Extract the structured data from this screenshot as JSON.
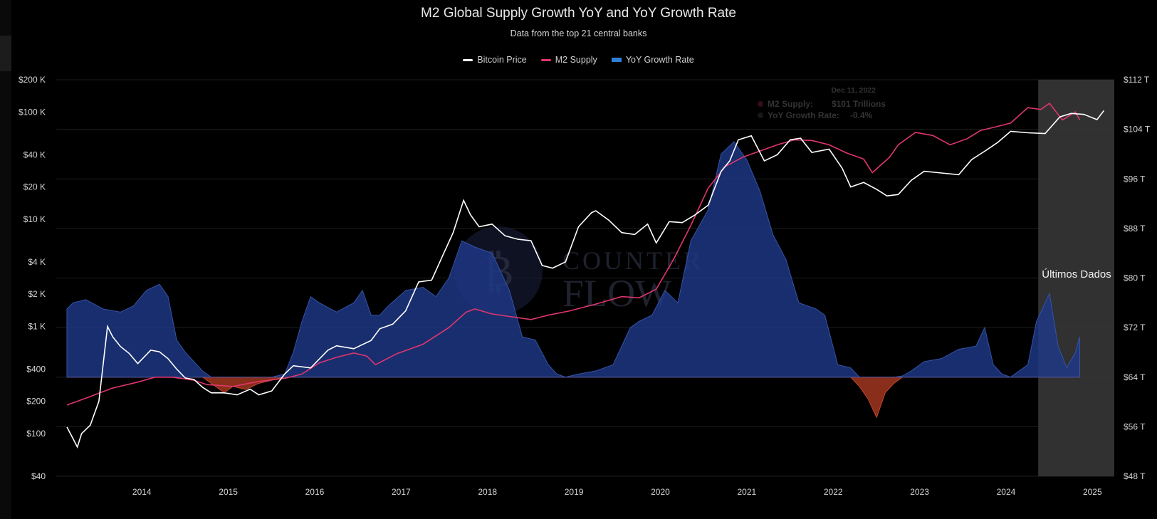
{
  "header": {
    "title": "M2 Global Supply Growth YoY and YoY Growth Rate",
    "subtitle": "Data from the top 21 central banks"
  },
  "legend": [
    {
      "label": "Bitcoin Price",
      "color": "#ffffff",
      "kind": "line"
    },
    {
      "label": "M2 Supply",
      "color": "#e0356e",
      "kind": "line"
    },
    {
      "label": "YoY Growth Rate",
      "color": "#2f7fd8",
      "kind": "bar"
    }
  ],
  "tooltip": {
    "date": "Dec 11, 2022",
    "m2_label": "M2 Supply:",
    "m2_value": "$101 Trillions",
    "yoy_label": "YoY Growth Rate:",
    "yoy_value": "-0.4%"
  },
  "annotation": {
    "label": "Últimos Dados",
    "start": 2024.62,
    "end": 2025.5
  },
  "watermark": {
    "line1": "COUNTER",
    "line2": "FLOW"
  },
  "colors": {
    "background": "#000000",
    "btc": "#ffffff",
    "m2": "#e0356e",
    "yoy_positive": "#1f3a8a",
    "yoy_negative": "#a0361f",
    "highlight": "#3a3a3a"
  },
  "chart_data": {
    "type": "line",
    "x_range": [
      2013.38,
      2025.5
    ],
    "left_axis": {
      "scale": "log",
      "ticks": [
        40,
        100,
        200,
        400,
        1000,
        2000,
        4000,
        10000,
        20000,
        40000,
        100000,
        200000
      ],
      "tick_labels": [
        "$40",
        "$100",
        "$200",
        "$400",
        "$1 K",
        "$2 K",
        "$4 K",
        "$10 K",
        "$20 K",
        "$40 K",
        "$100 K",
        "$200 K"
      ]
    },
    "right_axis": {
      "scale": "linear",
      "range": [
        48,
        112
      ],
      "ticks": [
        48,
        56,
        64,
        72,
        80,
        88,
        96,
        104,
        112
      ],
      "tick_labels": [
        "$48 T",
        "$56 T",
        "$64 T",
        "$72 T",
        "$80 T",
        "$88 T",
        "$96 T",
        "$104 T",
        "$112 T"
      ]
    },
    "x_ticks": [
      2014,
      2015,
      2016,
      2017,
      2018,
      2019,
      2020,
      2021,
      2022,
      2023,
      2024,
      2025
    ],
    "x_tick_labels": [
      "2014",
      "2015",
      "2016",
      "2017",
      "2018",
      "2019",
      "2020",
      "2021",
      "2022",
      "2023",
      "2024",
      "2025"
    ],
    "yoy_baseline": 64,
    "series": [
      {
        "name": "Bitcoin Price",
        "axis": "left",
        "color": "#ffffff",
        "x": [
          2013.38,
          2013.45,
          2013.5,
          2013.55,
          2013.65,
          2013.75,
          2013.85,
          2013.91,
          2014.0,
          2014.1,
          2014.2,
          2014.35,
          2014.45,
          2014.55,
          2014.65,
          2014.75,
          2014.85,
          2014.95,
          2015.05,
          2015.2,
          2015.35,
          2015.5,
          2015.6,
          2015.75,
          2015.9,
          2016.0,
          2016.2,
          2016.4,
          2016.5,
          2016.7,
          2016.9,
          2017.0,
          2017.15,
          2017.3,
          2017.45,
          2017.6,
          2017.75,
          2017.85,
          2017.97,
          2018.05,
          2018.15,
          2018.3,
          2018.45,
          2018.6,
          2018.75,
          2018.88,
          2019.0,
          2019.15,
          2019.3,
          2019.45,
          2019.5,
          2019.65,
          2019.8,
          2019.95,
          2020.1,
          2020.2,
          2020.35,
          2020.5,
          2020.65,
          2020.8,
          2020.95,
          2021.05,
          2021.15,
          2021.3,
          2021.45,
          2021.6,
          2021.75,
          2021.87,
          2022.0,
          2022.2,
          2022.35,
          2022.45,
          2022.6,
          2022.75,
          2022.87,
          2023.0,
          2023.15,
          2023.3,
          2023.5,
          2023.7,
          2023.85,
          2024.0,
          2024.15,
          2024.3,
          2024.5,
          2024.7,
          2024.87,
          2025.0,
          2025.15,
          2025.3,
          2025.38
        ],
        "values": [
          115,
          90,
          75,
          100,
          120,
          200,
          1000,
          800,
          650,
          560,
          450,
          600,
          580,
          500,
          400,
          330,
          320,
          270,
          240,
          240,
          230,
          260,
          230,
          250,
          360,
          430,
          410,
          600,
          660,
          620,
          740,
          950,
          1050,
          1400,
          2600,
          2700,
          5000,
          7500,
          15000,
          11000,
          8500,
          9000,
          7000,
          6500,
          6300,
          3700,
          3500,
          4000,
          8500,
          11500,
          12000,
          9800,
          7500,
          7200,
          9000,
          6000,
          9500,
          9300,
          11000,
          13500,
          28000,
          35000,
          55000,
          60000,
          35000,
          40000,
          55000,
          57000,
          42000,
          45000,
          30000,
          20000,
          22000,
          19000,
          16500,
          17000,
          23000,
          28000,
          27000,
          26000,
          36000,
          43000,
          52000,
          66000,
          64000,
          63000,
          90000,
          97000,
          95000,
          85000,
          103000
        ]
      },
      {
        "name": "M2 Supply",
        "axis": "right",
        "color": "#e0356e",
        "x": [
          2013.38,
          2013.6,
          2013.9,
          2014.2,
          2014.4,
          2014.6,
          2014.85,
          2015.0,
          2015.3,
          2015.6,
          2015.9,
          2016.1,
          2016.3,
          2016.5,
          2016.7,
          2016.85,
          2016.95,
          2017.2,
          2017.5,
          2017.8,
          2018.0,
          2018.1,
          2018.3,
          2018.5,
          2018.75,
          2018.95,
          2019.2,
          2019.5,
          2019.8,
          2020.0,
          2020.2,
          2020.4,
          2020.6,
          2020.8,
          2021.0,
          2021.2,
          2021.4,
          2021.6,
          2021.8,
          2022.0,
          2022.2,
          2022.4,
          2022.6,
          2022.7,
          2022.9,
          2023.0,
          2023.2,
          2023.4,
          2023.6,
          2023.8,
          2023.95,
          2024.1,
          2024.3,
          2024.5,
          2024.65,
          2024.75,
          2024.9,
          2025.05,
          2025.1
        ],
        "values": [
          59.5,
          60.6,
          62.2,
          63.2,
          64.0,
          64.0,
          63.5,
          62.8,
          62.5,
          63.3,
          63.8,
          64.5,
          66.3,
          67.2,
          67.9,
          67.4,
          66.0,
          67.8,
          69.3,
          72.0,
          74.5,
          75.0,
          74.2,
          73.8,
          73.3,
          74.0,
          74.7,
          75.8,
          77.0,
          76.8,
          78.2,
          83.0,
          88.5,
          94.5,
          98.0,
          99.5,
          100.5,
          101.5,
          102.3,
          102.2,
          101.5,
          100.2,
          99.2,
          97.0,
          99.5,
          101.5,
          103.5,
          103.0,
          101.5,
          102.5,
          103.8,
          104.3,
          105.0,
          107.5,
          107.2,
          108.2,
          105.5,
          106.8,
          105.5
        ]
      },
      {
        "name": "YoY Growth Rate",
        "axis": "right",
        "color": "#1f3a8a",
        "x": [
          2013.38,
          2013.45,
          2013.6,
          2013.8,
          2014.0,
          2014.15,
          2014.3,
          2014.45,
          2014.55,
          2014.65,
          2014.75,
          2014.85,
          2014.95,
          2015.05,
          2015.2,
          2015.3,
          2015.45,
          2015.6,
          2015.75,
          2015.9,
          2016.0,
          2016.1,
          2016.2,
          2016.3,
          2016.5,
          2016.7,
          2016.8,
          2016.9,
          2017.0,
          2017.1,
          2017.3,
          2017.5,
          2017.65,
          2017.8,
          2017.95,
          2018.1,
          2018.3,
          2018.5,
          2018.65,
          2018.8,
          2018.95,
          2019.05,
          2019.15,
          2019.3,
          2019.5,
          2019.7,
          2019.9,
          2020.0,
          2020.15,
          2020.3,
          2020.45,
          2020.6,
          2020.8,
          2020.95,
          2021.1,
          2021.25,
          2021.4,
          2021.55,
          2021.7,
          2021.85,
          2021.95,
          2022.05,
          2022.15,
          2022.3,
          2022.45,
          2022.55,
          2022.65,
          2022.75,
          2022.85,
          2022.95,
          2023.05,
          2023.15,
          2023.3,
          2023.5,
          2023.7,
          2023.9,
          2024.0,
          2024.1,
          2024.2,
          2024.3,
          2024.4,
          2024.5,
          2024.6,
          2024.75,
          2024.85,
          2024.95,
          2025.05,
          2025.1
        ],
        "values": [
          75.0,
          76.0,
          76.5,
          75.0,
          74.5,
          75.5,
          78.0,
          79.0,
          77.0,
          70.0,
          68.0,
          66.5,
          65.0,
          63.0,
          61.5,
          62.5,
          62.0,
          63.0,
          63.5,
          64.5,
          68.0,
          73.0,
          77.0,
          76.0,
          74.5,
          76.0,
          78.0,
          74.0,
          74.0,
          75.5,
          78.0,
          78.5,
          77.0,
          80.0,
          86.0,
          85.0,
          84.0,
          78.0,
          70.5,
          70.0,
          66.0,
          64.5,
          64.0,
          64.5,
          65.0,
          66.0,
          72.0,
          73.0,
          74.0,
          78.0,
          76.0,
          86.0,
          91.0,
          100.0,
          102.0,
          99.0,
          94.0,
          87.0,
          83.0,
          76.0,
          75.5,
          75.0,
          74.0,
          66.0,
          65.5,
          62.5,
          60.5,
          57.5,
          61.5,
          63.0,
          64.2,
          65.0,
          66.5,
          67.0,
          68.5,
          69.0,
          72.0,
          66.0,
          64.5,
          64.0,
          65.0,
          66.0,
          73.0,
          77.5,
          69.0,
          65.5,
          68.0,
          70.5
        ]
      }
    ]
  }
}
